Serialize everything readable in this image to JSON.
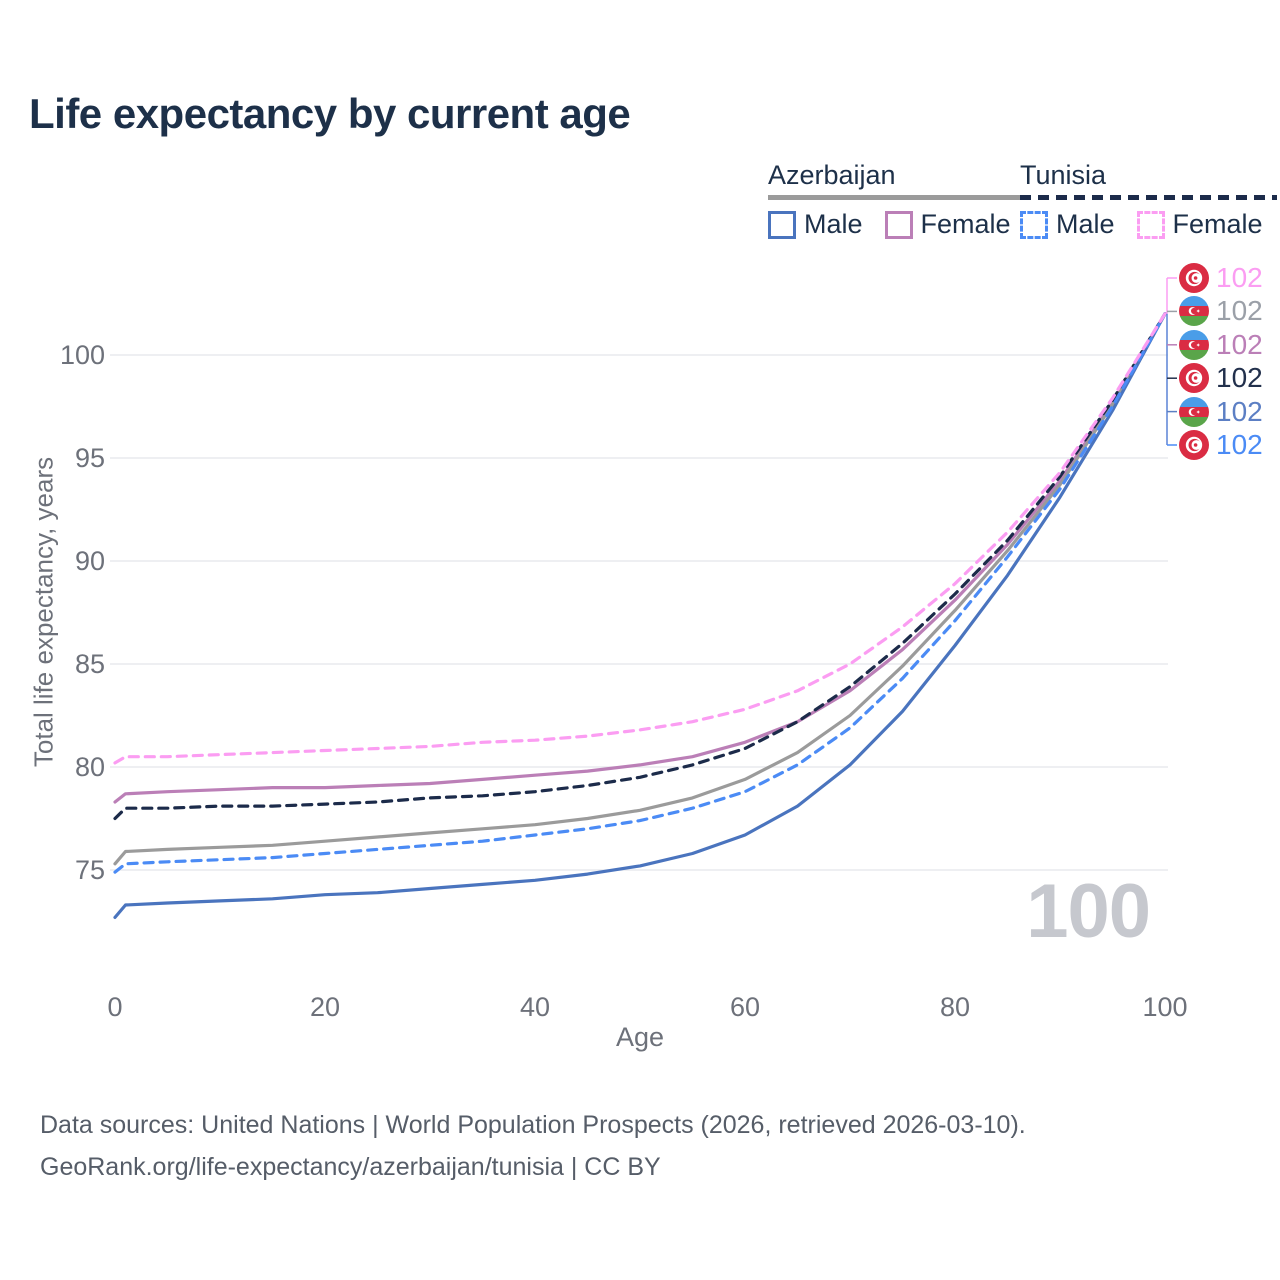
{
  "title": "Life expectancy by current age",
  "legend": {
    "groups": [
      {
        "id": "az",
        "label": "Azerbaijan",
        "line_style": "solid",
        "line_color": "#9b9b9b",
        "items": [
          {
            "label": "Male",
            "color": "#4a74be",
            "dash": false
          },
          {
            "label": "Female",
            "color": "#bb7fb7",
            "dash": false
          }
        ]
      },
      {
        "id": "tn",
        "label": "Tunisia",
        "line_style": "dashed",
        "line_color": "#1c2b4a",
        "items": [
          {
            "label": "Male",
            "color": "#4b8bf5",
            "dash": true
          },
          {
            "label": "Female",
            "color": "#fb9df2",
            "dash": true
          }
        ]
      }
    ]
  },
  "chart_data": {
    "type": "line",
    "title": "Life expectancy by current age",
    "xlabel": "Age",
    "ylabel": "Total life expectancy, years",
    "x_ticks": [
      0,
      20,
      40,
      60,
      80,
      100
    ],
    "y_ticks": [
      100,
      95,
      90,
      85,
      80,
      75
    ],
    "xlim": [
      0,
      100
    ],
    "ylim": [
      72,
      103
    ],
    "grid": "horizontal",
    "legend_position": "top-right",
    "x": [
      0,
      1,
      5,
      10,
      15,
      20,
      25,
      30,
      35,
      40,
      45,
      50,
      55,
      60,
      65,
      70,
      75,
      80,
      85,
      90,
      95,
      100
    ],
    "series": [
      {
        "id": "az_female",
        "name": "Azerbaijan Female",
        "country": "Azerbaijan",
        "sex": "Female",
        "color": "#bb7fb7",
        "dash": false,
        "values": [
          78.3,
          78.7,
          78.8,
          78.9,
          79.0,
          79.0,
          79.1,
          79.2,
          79.4,
          79.6,
          79.8,
          80.1,
          80.5,
          81.2,
          82.2,
          83.7,
          85.7,
          88.1,
          90.8,
          93.9,
          97.7,
          102
        ]
      },
      {
        "id": "az_total",
        "name": "Azerbaijan",
        "country": "Azerbaijan",
        "sex": "Both",
        "color": "#9b9b9b",
        "dash": false,
        "values": [
          75.3,
          75.9,
          76.0,
          76.1,
          76.2,
          76.4,
          76.6,
          76.8,
          77.0,
          77.2,
          77.5,
          77.9,
          78.5,
          79.4,
          80.7,
          82.5,
          84.9,
          87.6,
          90.5,
          93.7,
          97.6,
          102
        ]
      },
      {
        "id": "az_male",
        "name": "Azerbaijan Male",
        "country": "Azerbaijan",
        "sex": "Male",
        "color": "#4a74be",
        "dash": false,
        "values": [
          72.7,
          73.3,
          73.4,
          73.5,
          73.6,
          73.8,
          73.9,
          74.1,
          74.3,
          74.5,
          74.8,
          75.2,
          75.8,
          76.7,
          78.1,
          80.1,
          82.7,
          85.9,
          89.3,
          93.1,
          97.3,
          102
        ]
      },
      {
        "id": "tn_total",
        "name": "Tunisia",
        "country": "Tunisia",
        "sex": "Both",
        "color": "#1c2b4a",
        "dash": true,
        "values": [
          77.5,
          78.0,
          78.0,
          78.1,
          78.1,
          78.2,
          78.3,
          78.5,
          78.6,
          78.8,
          79.1,
          79.5,
          80.1,
          80.9,
          82.2,
          83.9,
          86.0,
          88.4,
          91.0,
          94.1,
          97.8,
          102
        ]
      },
      {
        "id": "tn_male",
        "name": "Tunisia Male",
        "country": "Tunisia",
        "sex": "Male",
        "color": "#4b8bf5",
        "dash": true,
        "values": [
          74.9,
          75.3,
          75.4,
          75.5,
          75.6,
          75.8,
          76.0,
          76.2,
          76.4,
          76.7,
          77.0,
          77.4,
          78.0,
          78.8,
          80.1,
          81.9,
          84.3,
          87.1,
          90.2,
          93.5,
          97.5,
          102
        ]
      },
      {
        "id": "tn_female",
        "name": "Tunisia Female",
        "country": "Tunisia",
        "sex": "Female",
        "color": "#fb9df2",
        "dash": true,
        "values": [
          80.2,
          80.5,
          80.5,
          80.6,
          80.7,
          80.8,
          80.9,
          81.0,
          81.2,
          81.3,
          81.5,
          81.8,
          82.2,
          82.8,
          83.7,
          85.0,
          86.8,
          88.9,
          91.4,
          94.3,
          97.9,
          102
        ]
      }
    ],
    "end_value_labels": [
      {
        "flag": "tunisia-flag",
        "series": "tn_female",
        "value": "102",
        "color": "#fb9df2"
      },
      {
        "flag": "azerbaijan-flag",
        "series": "az_total",
        "value": "102",
        "color": "#9ba0a8"
      },
      {
        "flag": "azerbaijan-flag",
        "series": "az_female",
        "value": "102",
        "color": "#bb7fb7"
      },
      {
        "flag": "tunisia-flag",
        "series": "tn_total",
        "value": "102",
        "color": "#22304c"
      },
      {
        "flag": "azerbaijan-flag",
        "series": "az_male",
        "value": "102",
        "color": "#5c7fc4"
      },
      {
        "flag": "tunisia-flag",
        "series": "tn_male",
        "value": "102",
        "color": "#4b8bf5"
      }
    ]
  },
  "watermark": "100",
  "footer": {
    "line1": "Data sources: United Nations | World Population Prospects (2026, retrieved 2026-03-10).",
    "line2": "GeoRank.org/life-expectancy/azerbaijan/tunisia | CC BY"
  }
}
